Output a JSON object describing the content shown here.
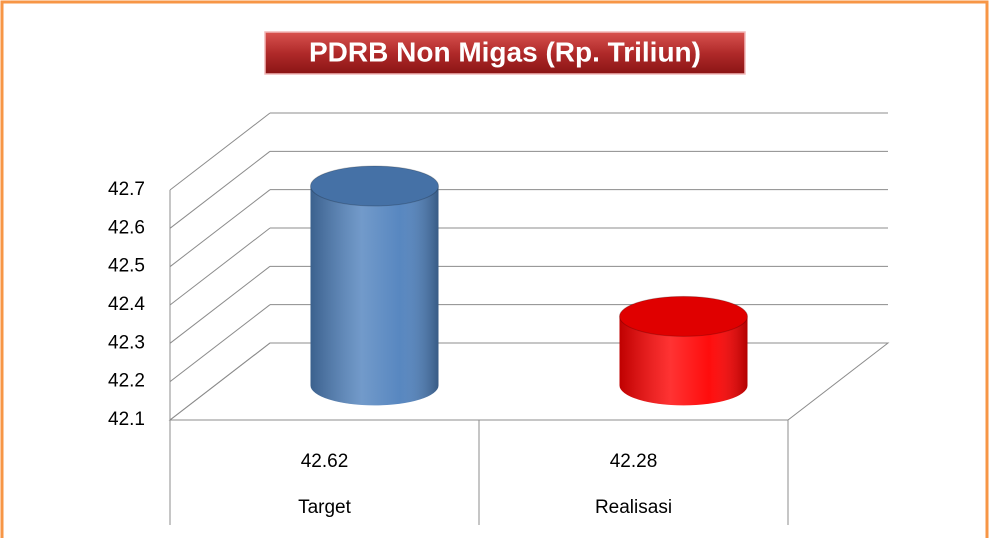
{
  "chart_data": {
    "type": "bar3d",
    "title": "PDRB Non Migas (Rp. Triliun)",
    "categories": [
      "Target",
      "Realisasi"
    ],
    "values": [
      42.62,
      42.28
    ],
    "colors": [
      "#4f81bd",
      "#ff0000"
    ],
    "ylim": [
      42.1,
      42.7
    ],
    "yticks": [
      42.1,
      42.2,
      42.3,
      42.4,
      42.5,
      42.6,
      42.7
    ],
    "grid": true
  }
}
